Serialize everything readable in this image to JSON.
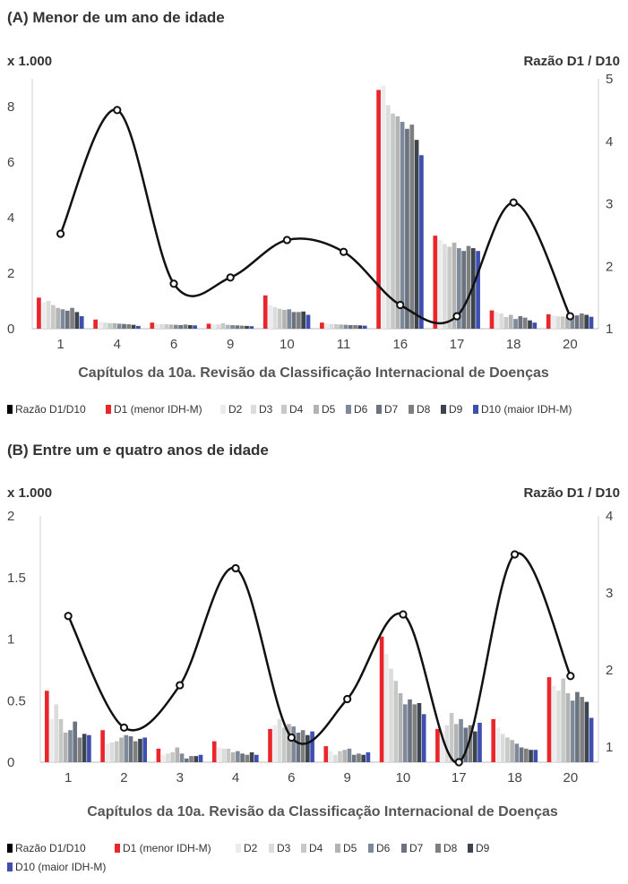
{
  "legend_labels": [
    "Razão D1/D10",
    "D1 (menor IDH-M)",
    "D2",
    "D3",
    "D4",
    "D5",
    "D6",
    "D7",
    "D8",
    "D9",
    "D10 (maior IDH-M)"
  ],
  "legend_colors": [
    "#000000",
    "#e8262b",
    "#ececec",
    "#dcdcdc",
    "#c5cac6",
    "#b3b3b3",
    "#7e8a99",
    "#6b7280",
    "#7f7f7f",
    "#3c4450",
    "#3e4fb0"
  ],
  "series_colors": [
    "#e8262b",
    "#ececec",
    "#dcdcdc",
    "#c5cac6",
    "#b3b3b3",
    "#7e8a99",
    "#6b7280",
    "#7f7f7f",
    "#3c4450",
    "#3e4fb0"
  ],
  "chart_data": [
    {
      "type": "bar",
      "title": "(A) Menor de um ano de idade",
      "y_unit": "x 1.000",
      "y2_label": "Razão D1 / D10",
      "xlabel": "Capítulos da 10a. Revisão da Classificação Internacional de Doenças",
      "categories": [
        "1",
        "4",
        "6",
        "9",
        "10",
        "11",
        "16",
        "17",
        "18",
        "20"
      ],
      "ylim": [
        0,
        9
      ],
      "yticks": [
        "0",
        "2",
        "4",
        "6",
        "8"
      ],
      "yticks_vals": [
        0,
        2,
        4,
        6,
        8
      ],
      "y2lim": [
        1,
        5
      ],
      "y2ticks": [
        "1",
        "2",
        "3",
        "4",
        "5"
      ],
      "y2ticks_vals": [
        1,
        2,
        3,
        4,
        5
      ],
      "series": [
        {
          "name": "D1 (menor IDH-M)",
          "values": [
            1.12,
            0.33,
            0.22,
            0.18,
            1.2,
            0.22,
            8.6,
            3.35,
            0.66,
            0.52
          ]
        },
        {
          "name": "D2",
          "values": [
            0.95,
            0.25,
            0.18,
            0.16,
            0.85,
            0.19,
            8.75,
            3.2,
            0.6,
            0.48
          ]
        },
        {
          "name": "D3",
          "values": [
            1.0,
            0.22,
            0.17,
            0.15,
            0.78,
            0.17,
            8.05,
            3.05,
            0.55,
            0.45
          ]
        },
        {
          "name": "D4",
          "values": [
            0.85,
            0.2,
            0.16,
            0.2,
            0.72,
            0.16,
            7.75,
            2.95,
            0.42,
            0.44
          ]
        },
        {
          "name": "D5",
          "values": [
            0.75,
            0.2,
            0.15,
            0.14,
            0.68,
            0.15,
            7.65,
            3.1,
            0.5,
            0.42
          ]
        },
        {
          "name": "D6",
          "values": [
            0.7,
            0.18,
            0.14,
            0.13,
            0.7,
            0.14,
            7.45,
            2.9,
            0.35,
            0.4
          ]
        },
        {
          "name": "D7",
          "values": [
            0.65,
            0.17,
            0.13,
            0.12,
            0.6,
            0.13,
            7.2,
            2.8,
            0.45,
            0.48
          ]
        },
        {
          "name": "D8",
          "values": [
            0.75,
            0.16,
            0.15,
            0.11,
            0.6,
            0.13,
            7.35,
            2.98,
            0.4,
            0.55
          ]
        },
        {
          "name": "D9",
          "values": [
            0.6,
            0.14,
            0.13,
            0.1,
            0.62,
            0.12,
            6.8,
            2.9,
            0.3,
            0.5
          ]
        },
        {
          "name": "D10 (maior IDH-M)",
          "values": [
            0.45,
            0.1,
            0.12,
            0.09,
            0.5,
            0.11,
            6.25,
            2.8,
            0.22,
            0.43
          ]
        }
      ],
      "ratio": {
        "name": "Razão D1/D10",
        "values": [
          2.52,
          4.5,
          1.72,
          1.82,
          2.42,
          2.23,
          1.38,
          1.2,
          3.02,
          1.2
        ]
      }
    },
    {
      "type": "bar",
      "title": "(B) Entre um e quatro anos de idade",
      "y_unit": "x 1.000",
      "y2_label": "Razão D1 / D10",
      "xlabel": "Capítulos da 10a. Revisão da Classificação Internacional de Doenças",
      "categories": [
        "1",
        "2",
        "3",
        "4",
        "6",
        "9",
        "10",
        "17",
        "18",
        "20"
      ],
      "ylim": [
        0,
        2
      ],
      "yticks": [
        "0",
        "0.5",
        "1",
        "1.5",
        "2"
      ],
      "yticks_vals": [
        0,
        0.5,
        1,
        1.5,
        2
      ],
      "y2lim": [
        0.8,
        4
      ],
      "y2ticks": [
        "1",
        "2",
        "3",
        "4"
      ],
      "y2ticks_vals": [
        1,
        2,
        3,
        4
      ],
      "series": [
        {
          "name": "D1 (menor IDH-M)",
          "values": [
            0.58,
            0.26,
            0.11,
            0.17,
            0.27,
            0.13,
            1.02,
            0.27,
            0.35,
            0.69
          ]
        },
        {
          "name": "D2",
          "values": [
            0.35,
            0.15,
            0.06,
            0.12,
            0.3,
            0.09,
            0.88,
            0.25,
            0.28,
            0.62
          ]
        },
        {
          "name": "D3",
          "values": [
            0.47,
            0.16,
            0.07,
            0.11,
            0.35,
            0.06,
            0.76,
            0.3,
            0.23,
            0.58
          ]
        },
        {
          "name": "D4",
          "values": [
            0.35,
            0.17,
            0.08,
            0.11,
            0.28,
            0.09,
            0.66,
            0.4,
            0.2,
            0.68
          ]
        },
        {
          "name": "D5",
          "values": [
            0.24,
            0.2,
            0.12,
            0.08,
            0.31,
            0.1,
            0.56,
            0.31,
            0.18,
            0.56
          ]
        },
        {
          "name": "D6",
          "values": [
            0.26,
            0.22,
            0.07,
            0.09,
            0.29,
            0.11,
            0.47,
            0.35,
            0.15,
            0.5
          ]
        },
        {
          "name": "D7",
          "values": [
            0.33,
            0.21,
            0.03,
            0.07,
            0.24,
            0.06,
            0.51,
            0.28,
            0.12,
            0.57
          ]
        },
        {
          "name": "D8",
          "values": [
            0.2,
            0.17,
            0.05,
            0.06,
            0.26,
            0.07,
            0.47,
            0.3,
            0.11,
            0.53
          ]
        },
        {
          "name": "D9",
          "values": [
            0.23,
            0.19,
            0.05,
            0.08,
            0.22,
            0.06,
            0.48,
            0.25,
            0.1,
            0.49
          ]
        },
        {
          "name": "D10 (maior IDH-M)",
          "values": [
            0.22,
            0.2,
            0.06,
            0.06,
            0.25,
            0.08,
            0.39,
            0.32,
            0.1,
            0.36
          ]
        }
      ],
      "ratio": {
        "name": "Razão D1/D10",
        "values": [
          2.7,
          1.25,
          1.8,
          3.32,
          1.12,
          1.62,
          2.72,
          0.8,
          3.5,
          1.92
        ]
      }
    }
  ]
}
